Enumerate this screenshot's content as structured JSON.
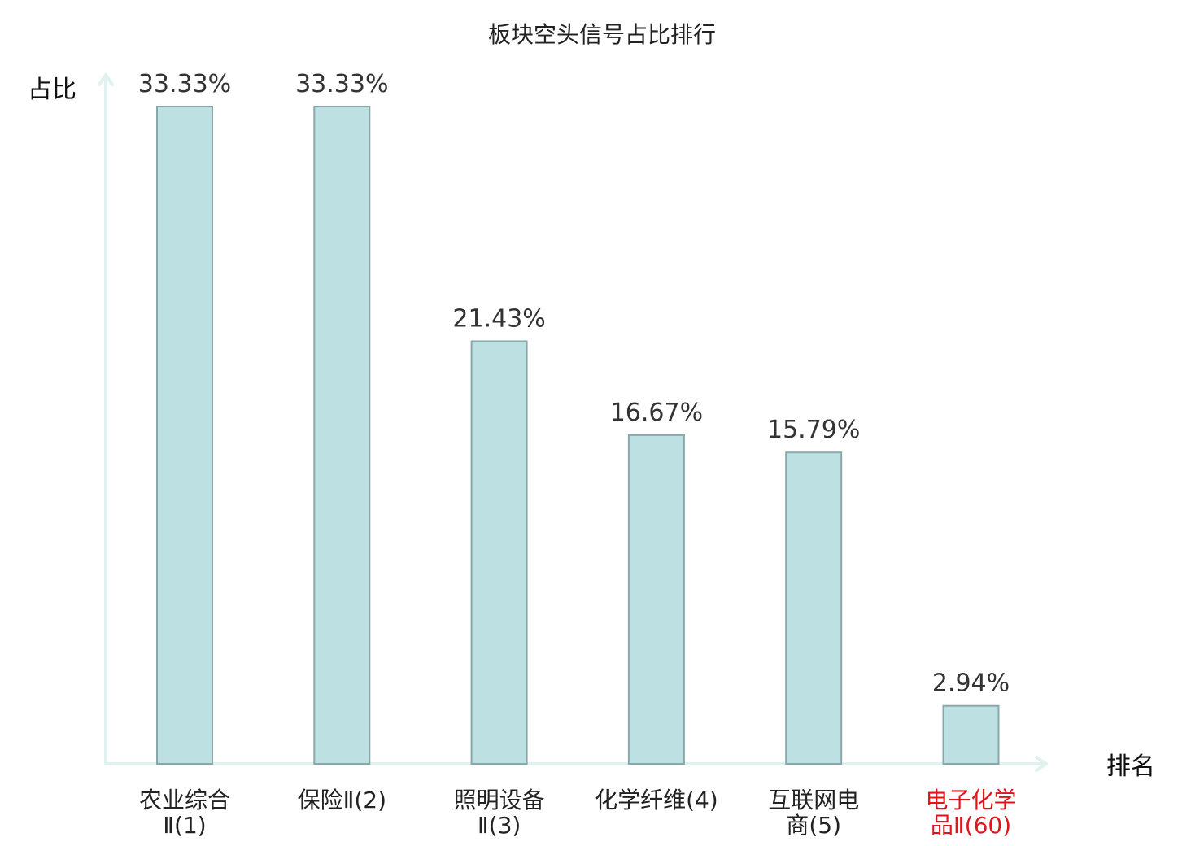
{
  "chart_data": {
    "type": "bar",
    "title": "板块空头信号占比排行",
    "ylabel": "占比",
    "xlabel": "排名",
    "categories": [
      {
        "lines": [
          "农业综合",
          "Ⅱ(1)"
        ],
        "highlight": false
      },
      {
        "lines": [
          "保险Ⅱ(2)"
        ],
        "highlight": false
      },
      {
        "lines": [
          "照明设备",
          "Ⅱ(3)"
        ],
        "highlight": false
      },
      {
        "lines": [
          "化学纤维(4)"
        ],
        "highlight": false
      },
      {
        "lines": [
          "互联网电",
          "商(5)"
        ],
        "highlight": false
      },
      {
        "lines": [
          "电子化学",
          "品Ⅱ(60)"
        ],
        "highlight": true
      }
    ],
    "values": [
      33.33,
      33.33,
      21.43,
      16.67,
      15.79,
      2.94
    ],
    "value_labels": [
      "33.33%",
      "33.33%",
      "21.43%",
      "16.67%",
      "15.79%",
      "2.94%"
    ],
    "ylim": [
      0,
      33.33
    ],
    "grid": false,
    "colors": {
      "bar_fill": "#bde0e3",
      "bar_stroke": "#8aa7aa",
      "axis": "#e0f2ef",
      "text": "#222222",
      "highlight": "#e0141b"
    }
  }
}
